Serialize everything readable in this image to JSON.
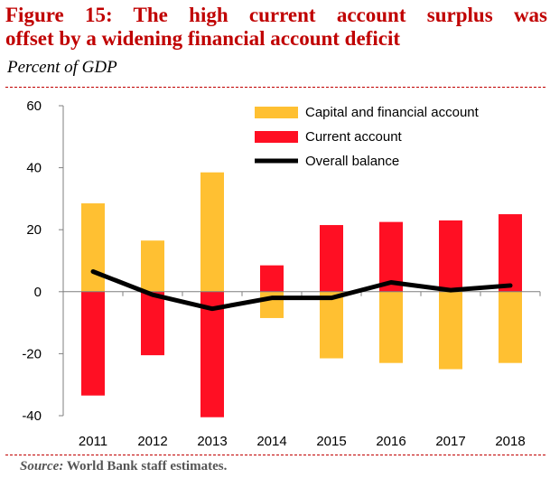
{
  "header": {
    "title_line1": "Figure 15: The high current account surplus was",
    "title_line2": "offset by a widening financial account deficit",
    "subtitle": "Percent of GDP"
  },
  "footer": {
    "source_label": "Source:",
    "source_text": " World Bank staff estimates."
  },
  "colors": {
    "title": "#c00000",
    "capital_financial": "#ffc032",
    "current_account": "#ff0f23",
    "overall_balance": "#000000"
  },
  "chart_data": {
    "type": "bar",
    "title": "Figure 15: The high current account surplus was offset by a widening financial account deficit",
    "ylabel": "Percent of GDP",
    "xlabel": "",
    "categories": [
      "2011",
      "2012",
      "2013",
      "2014",
      "2015",
      "2016",
      "2017",
      "2018"
    ],
    "ylim": [
      -40,
      60
    ],
    "yticks": [
      60,
      40,
      20,
      0,
      -20,
      -40
    ],
    "ytick_labels": [
      "60",
      "40",
      "20",
      "0",
      "-20",
      "-40"
    ],
    "grid": false,
    "legend_position": "top-right",
    "series": [
      {
        "name": "Capital and financial account",
        "type": "bar",
        "color": "#ffc032",
        "values": [
          28.5,
          16.5,
          38.5,
          -8.5,
          -21.5,
          -23.0,
          -25.0,
          -23.0
        ]
      },
      {
        "name": "Current account",
        "type": "bar",
        "color": "#ff0f23",
        "values": [
          -33.5,
          -20.5,
          -40.5,
          8.5,
          21.5,
          22.5,
          23.0,
          25.0
        ]
      },
      {
        "name": "Overall balance",
        "type": "line",
        "color": "#000000",
        "values": [
          6.5,
          -1.0,
          -5.5,
          -2.0,
          -2.0,
          3.0,
          0.5,
          2.0
        ]
      }
    ]
  }
}
